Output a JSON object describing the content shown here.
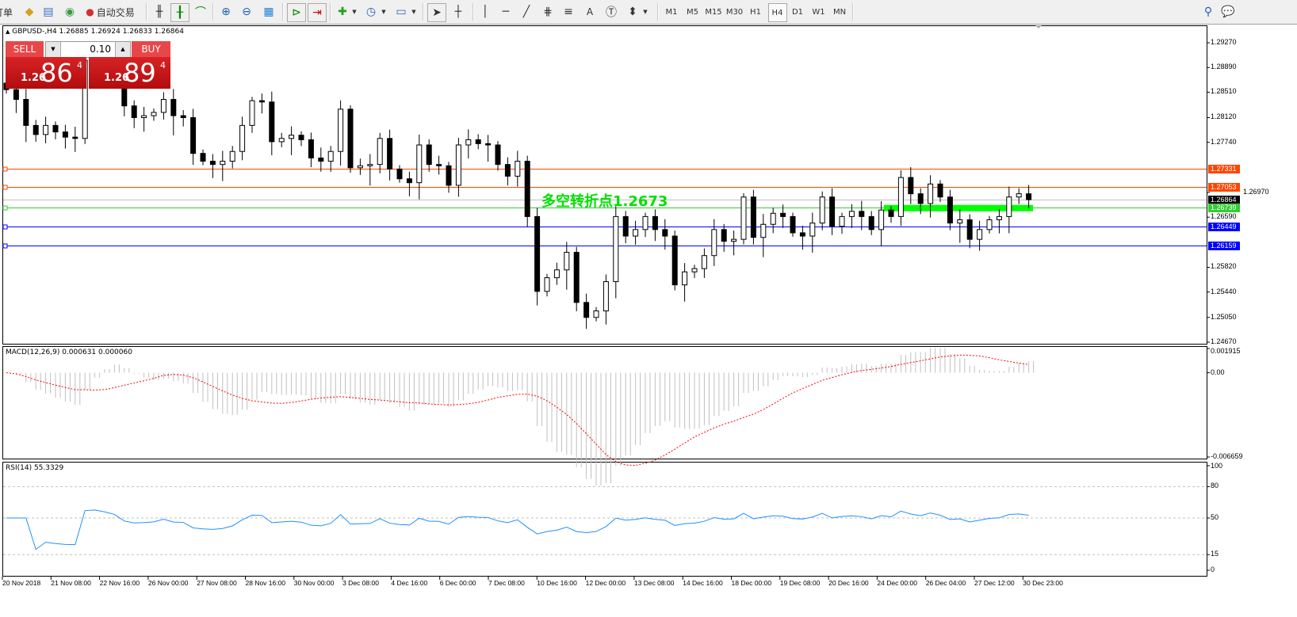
{
  "toolbar": {
    "order_label": "订单",
    "autotrade_label": "自动交易",
    "icons": [
      "folder-icon",
      "market-watch-icon",
      "signal-icon",
      "autotrade-icon",
      "bar-chart-icon",
      "candlestick-icon",
      "line-chart-icon",
      "zoom-in-icon",
      "zoom-out-icon",
      "tile-windows-icon",
      "chart-shift-icon",
      "autoscroll-icon",
      "indicators-icon",
      "periods-icon",
      "templates-icon",
      "cursor-icon",
      "crosshair-icon",
      "vertical-line-icon",
      "horizontal-line-icon",
      "trendline-icon",
      "fibonacci-icon",
      "fibo-fan-icon",
      "text-icon",
      "text-label-icon",
      "arrows-icon",
      "search-icon",
      "community-icon"
    ],
    "timeframes": [
      "M1",
      "M5",
      "M15",
      "M30",
      "H1",
      "H4",
      "D1",
      "W1",
      "MN"
    ],
    "active_timeframe": "H4"
  },
  "chart": {
    "header": "GBPUSD-,H4  1.26885 1.26924 1.26833 1.26864",
    "annotation": "多空转折点1.2673",
    "annotation_color": "#00e000"
  },
  "trade_panel": {
    "sell_label": "SELL",
    "buy_label": "BUY",
    "lot": "0.10",
    "sell_prefix": "1.26",
    "sell_big": "86",
    "sell_sup": "4",
    "buy_prefix": "1.26",
    "buy_big": "89",
    "buy_sup": "4"
  },
  "chart_data": [
    {
      "type": "candlestick",
      "symbol": "GBPUSD-",
      "timeframe": "H4",
      "ylim": [
        1.2467,
        1.295
      ],
      "price_ticks": [
        "1.29270",
        "1.28890",
        "1.28510",
        "1.28120",
        "1.27740",
        "1.26970",
        "1.26590",
        "1.25820",
        "1.25440",
        "1.25050",
        "1.24670"
      ],
      "first_open": 1.2865,
      "close": [
        1.2855,
        1.284,
        1.28,
        1.2786,
        1.28,
        1.279,
        1.2782,
        1.278,
        1.29,
        1.2905,
        1.2895,
        1.288,
        1.283,
        1.2812,
        1.2815,
        1.282,
        1.284,
        1.2815,
        1.2812,
        1.2757,
        1.2745,
        1.274,
        1.2745,
        1.276,
        1.28,
        1.2838,
        1.2836,
        1.2775,
        1.278,
        1.2785,
        1.2778,
        1.275,
        1.2745,
        1.276,
        1.2825,
        1.2735,
        1.2738,
        1.274,
        1.278,
        1.2733,
        1.2718,
        1.2712,
        1.277,
        1.274,
        1.2738,
        1.2708,
        1.277,
        1.2778,
        1.2772,
        1.277,
        1.274,
        1.2722,
        1.2745,
        1.266,
        1.2545,
        1.2566,
        1.2578,
        1.2605,
        1.2528,
        1.2505,
        1.2515,
        1.256,
        1.266,
        1.263,
        1.264,
        1.266,
        1.264,
        1.263,
        1.2555,
        1.2575,
        1.258,
        1.26,
        1.264,
        1.2622,
        1.2625,
        1.269,
        1.2628,
        1.2648,
        1.2665,
        1.266,
        1.2635,
        1.263,
        1.265,
        1.269,
        1.2645,
        1.266,
        1.2668,
        1.266,
        1.264,
        1.267,
        1.266,
        1.272,
        1.2695,
        1.268,
        1.271,
        1.269,
        1.265,
        1.2655,
        1.2625,
        1.264,
        1.2655,
        1.266,
        1.269,
        1.2695,
        1.2686
      ],
      "levels": [
        {
          "price": "1.27331",
          "color": "#ff4500"
        },
        {
          "price": "1.27053",
          "color": "#ff4500"
        },
        {
          "price": "1.26864",
          "color": "#000000",
          "line_color": "#c0c0c0"
        },
        {
          "price": "1.26739",
          "color": "#32cd32"
        },
        {
          "price": "1.26449",
          "color": "#0000ff"
        },
        {
          "price": "1.26159",
          "color": "#0000ff"
        }
      ],
      "zone": {
        "price": 1.2673,
        "color": "#00ff00"
      },
      "time_labels": [
        "20 Nov 2018",
        "21 Nov 08:00",
        "22 Nov 16:00",
        "26 Nov 00:00",
        "27 Nov 08:00",
        "28 Nov 16:00",
        "30 Nov 00:00",
        "3 Dec 08:00",
        "4 Dec 16:00",
        "6 Dec 00:00",
        "7 Dec 08:00",
        "10 Dec 16:00",
        "12 Dec 00:00",
        "13 Dec 08:00",
        "14 Dec 16:00",
        "18 Dec 00:00",
        "19 Dec 08:00",
        "20 Dec 16:00",
        "24 Dec 00:00",
        "26 Dec 04:00",
        "27 Dec 12:00",
        "30 Dec 23:00"
      ]
    },
    {
      "type": "bar+line",
      "title": "MACD(12,26,9) 0.000631 0.000060",
      "ylim": [
        -0.006659,
        0.001915
      ],
      "ticks": [
        "0.001915",
        "0.00",
        "-0.006659"
      ],
      "histogram_color": "#c0c0c0",
      "signal_color": "#ff0000"
    },
    {
      "type": "line",
      "title": "RSI(14) 55.3329",
      "ylim": [
        0,
        100
      ],
      "ticks": [
        "100",
        "80",
        "50",
        "15",
        "0"
      ],
      "levels": [
        80,
        50,
        15
      ],
      "color": "#1e90ff"
    }
  ]
}
